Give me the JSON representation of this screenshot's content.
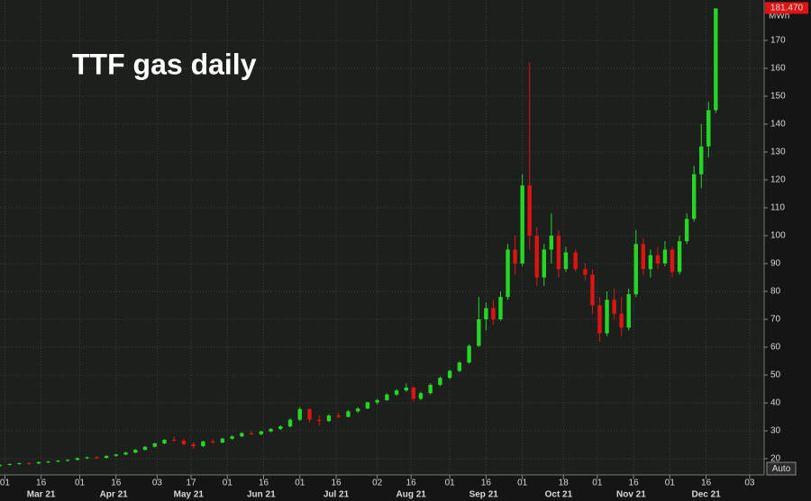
{
  "chart_data": {
    "type": "candlestick",
    "title": "TTF gas daily",
    "y_unit": "MWh",
    "last_price_label": "181.470",
    "scale_button": "Auto",
    "up_color": "#25d625",
    "down_color": "#dd1414",
    "grid": true,
    "x": [
      58,
      62,
      66,
      70,
      74,
      78,
      82,
      86,
      90,
      94,
      98,
      102,
      106,
      110,
      114,
      118,
      122,
      126,
      130,
      134,
      138,
      142,
      146,
      150,
      154,
      158,
      162,
      166,
      170,
      174,
      178,
      182,
      186,
      190,
      194,
      198,
      202,
      206,
      210,
      214,
      218,
      222,
      226,
      229,
      232,
      236,
      240,
      244,
      248,
      252,
      256,
      259,
      262,
      265,
      268,
      271,
      274,
      277,
      280,
      283,
      286,
      289,
      292,
      296,
      300,
      303,
      306,
      309,
      312,
      315,
      318,
      321,
      324,
      327,
      330,
      333,
      336,
      339,
      342,
      345,
      348,
      351,
      354
    ],
    "open": [
      17.5,
      17.8,
      18.1,
      18.4,
      18.3,
      18.8,
      19.0,
      19.3,
      19.6,
      20.2,
      20.5,
      20.3,
      21.0,
      21.5,
      22.2,
      23.2,
      24.3,
      25.5,
      26.8,
      26.5,
      25.2,
      24.5,
      26.2,
      25.8,
      27.2,
      28.0,
      29.2,
      28.8,
      29.8,
      30.7,
      31.6,
      34.0,
      37.8,
      34.0,
      33.5,
      35.5,
      35.0,
      37.0,
      38.0,
      40.2,
      41.0,
      43.0,
      44.5,
      45.5,
      41.5,
      43.5,
      46.5,
      49.0,
      51.5,
      54.5,
      60.5,
      70.0,
      74.0,
      70.0,
      78.0,
      95.0,
      90.0,
      118.0,
      100.0,
      85.0,
      95.0,
      100.0,
      88.0,
      94.0,
      88.0,
      86.0,
      75.0,
      65.0,
      77.0,
      72.0,
      67.0,
      79.0,
      97.0,
      88.0,
      93.0,
      90.0,
      95.0,
      87.0,
      98.0,
      106.0,
      122.0,
      132.0,
      145.0
    ],
    "high": [
      18,
      18.3,
      18.6,
      18.8,
      19.0,
      19.2,
      19.5,
      19.8,
      20.5,
      20.8,
      21.0,
      21.2,
      21.8,
      22.5,
      23.5,
      24.5,
      25.8,
      27.0,
      28.0,
      27.2,
      26.0,
      26.5,
      27.0,
      27.5,
      28.5,
      29.5,
      29.8,
      30.0,
      31.0,
      32.0,
      34.5,
      38.5,
      38.0,
      35.5,
      36.0,
      36.5,
      37.5,
      38.5,
      40.5,
      41.5,
      43.5,
      45.0,
      47.0,
      46.0,
      44.0,
      47.0,
      49.5,
      52.0,
      55.0,
      61.0,
      78.0,
      76.0,
      77.0,
      80.0,
      97.0,
      100.0,
      122.0,
      162.0,
      103.0,
      97.0,
      108.0,
      102.0,
      96.0,
      95.0,
      90.0,
      88.0,
      78.0,
      80.0,
      81.0,
      78.0,
      81.0,
      102.0,
      99.0,
      95.0,
      96.0,
      98.0,
      96.0,
      100.0,
      108.0,
      125.0,
      140.0,
      148.0,
      181.5
    ],
    "low": [
      17,
      17.6,
      17.9,
      18.0,
      18.1,
      18.5,
      18.7,
      19.0,
      19.4,
      19.9,
      20.0,
      20.1,
      20.8,
      21.3,
      22.0,
      23.0,
      24.0,
      25.2,
      26.0,
      24.8,
      23.5,
      24.2,
      25.5,
      25.5,
      26.8,
      27.8,
      28.5,
      28.4,
      29.5,
      30.3,
      31.2,
      33.5,
      33.0,
      32.0,
      33.2,
      34.5,
      34.8,
      36.5,
      37.8,
      39.5,
      40.8,
      42.5,
      44.0,
      40.5,
      41.0,
      43.0,
      46.0,
      48.5,
      51.0,
      54.0,
      60.0,
      66.0,
      68.0,
      69.5,
      77.0,
      86.0,
      89.0,
      95.0,
      82.0,
      82.0,
      90.0,
      85.0,
      87.0,
      87.0,
      84.0,
      72.0,
      62.0,
      64.0,
      70.0,
      64.0,
      66.0,
      78.0,
      86.0,
      85.0,
      88.0,
      89.0,
      85.0,
      86.0,
      97.0,
      105.0,
      117.0,
      128.0,
      144.0
    ],
    "close": [
      17.8,
      18.1,
      18.4,
      18.3,
      18.8,
      19.0,
      19.3,
      19.6,
      20.2,
      20.5,
      20.3,
      21.0,
      21.5,
      22.2,
      23.2,
      24.3,
      25.5,
      26.8,
      26.5,
      25.2,
      24.5,
      26.2,
      25.8,
      27.2,
      28.0,
      29.2,
      28.8,
      29.8,
      30.7,
      31.6,
      34.0,
      37.8,
      34.0,
      33.5,
      35.5,
      35.0,
      37.0,
      38.0,
      40.2,
      41.0,
      43.0,
      44.5,
      45.5,
      41.5,
      43.5,
      46.5,
      49.0,
      51.5,
      54.5,
      60.5,
      70.0,
      74.0,
      70.0,
      78.0,
      95.0,
      90.0,
      118.0,
      100.0,
      85.0,
      95.0,
      100.0,
      88.0,
      94.0,
      88.0,
      86.0,
      75.0,
      65.0,
      77.0,
      72.0,
      67.0,
      79.0,
      97.0,
      88.0,
      93.0,
      90.0,
      95.0,
      87.0,
      98.0,
      106.0,
      122.0,
      132.0,
      145.0,
      181.47
    ],
    "xlim": [
      58,
      374
    ],
    "xticks": [
      {
        "value": 60,
        "label": "01"
      },
      {
        "value": 75,
        "label": "16"
      },
      {
        "value": 91,
        "label": "01"
      },
      {
        "value": 106,
        "label": "16"
      },
      {
        "value": 123,
        "label": "03"
      },
      {
        "value": 137,
        "label": "17"
      },
      {
        "value": 152,
        "label": "01"
      },
      {
        "value": 167,
        "label": "16"
      },
      {
        "value": 182,
        "label": "01"
      },
      {
        "value": 197,
        "label": "16"
      },
      {
        "value": 214,
        "label": "02"
      },
      {
        "value": 228,
        "label": "16"
      },
      {
        "value": 244,
        "label": "01"
      },
      {
        "value": 259,
        "label": "16"
      },
      {
        "value": 274,
        "label": "01"
      },
      {
        "value": 291,
        "label": "18"
      },
      {
        "value": 305,
        "label": "01"
      },
      {
        "value": 320,
        "label": "16"
      },
      {
        "value": 335,
        "label": "01"
      },
      {
        "value": 350,
        "label": "16"
      },
      {
        "value": 368,
        "label": "03"
      }
    ],
    "x_month_labels": [
      {
        "value": 75,
        "label": "Mar 21"
      },
      {
        "value": 105,
        "label": "Apr 21"
      },
      {
        "value": 136,
        "label": "May 21"
      },
      {
        "value": 166,
        "label": "Jun 21"
      },
      {
        "value": 197,
        "label": "Jul 21"
      },
      {
        "value": 228,
        "label": "Aug 21"
      },
      {
        "value": 258,
        "label": "Sep 21"
      },
      {
        "value": 289,
        "label": "Oct 21"
      },
      {
        "value": 319,
        "label": "Nov 21"
      },
      {
        "value": 350,
        "label": "Dec 21"
      }
    ],
    "ylim": [
      14.2,
      184.5
    ],
    "yticks": [
      20,
      30,
      40,
      50,
      60,
      70,
      80,
      90,
      100,
      110,
      120,
      130,
      140,
      150,
      160,
      170
    ]
  }
}
